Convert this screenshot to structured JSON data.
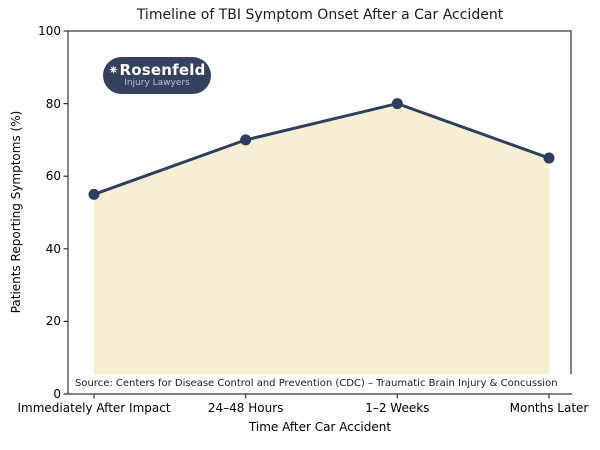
{
  "source_note": "Source: Centers for Disease Control and Prevention (CDC) – Traumatic Brain Injury & Concussion",
  "logo": {
    "star": "✷",
    "name": "Rosenfeld",
    "tagline": "Injury Lawyers",
    "bg_color": "#344260",
    "name_color": "#ffffff",
    "tagline_color": "#b6bfd1"
  },
  "chart_data": {
    "type": "area",
    "title": "Timeline of TBI Symptom Onset After a Car Accident",
    "xlabel": "Time After Car Accident",
    "ylabel": "Patients Reporting Symptoms (%)",
    "categories": [
      "Immediately After Impact",
      "24–48 Hours",
      "1–2 Weeks",
      "Months Later"
    ],
    "values": [
      55,
      70,
      80,
      65
    ],
    "ylim": [
      0,
      100
    ],
    "yticks": [
      0,
      20,
      40,
      60,
      80,
      100
    ],
    "grid": false,
    "legend": null,
    "marker": "circle",
    "line_color": "#2e3f5d",
    "fill_color": "#f7efd3",
    "axis_color": "#333333",
    "text_color": "#000000"
  }
}
